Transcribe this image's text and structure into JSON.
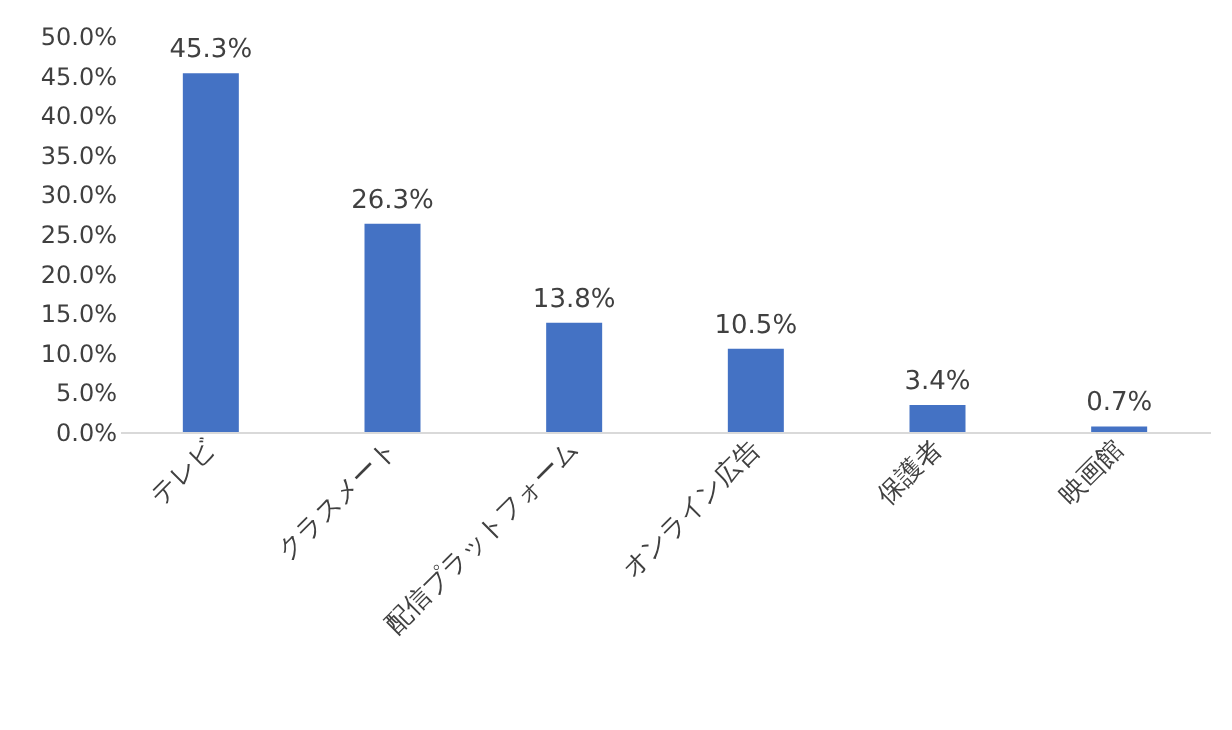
{
  "chart_data": {
    "type": "bar",
    "categories": [
      "テレビ",
      "クラスメート",
      "配信プラットフォーム",
      "オンライン広告",
      "保護者",
      "映画館"
    ],
    "values": [
      45.3,
      26.3,
      13.8,
      10.5,
      3.4,
      0.7
    ],
    "value_labels": [
      "45.3%",
      "26.3%",
      "13.8%",
      "10.5%",
      "3.4%",
      "0.7%"
    ],
    "color": "#4472c4",
    "ylim": [
      0,
      50
    ],
    "yticks": [
      {
        "value": 0,
        "label": "0.0%"
      },
      {
        "value": 5,
        "label": "5.0%"
      },
      {
        "value": 10,
        "label": "10.0%"
      },
      {
        "value": 15,
        "label": "15.0%"
      },
      {
        "value": 20,
        "label": "20.0%"
      },
      {
        "value": 25,
        "label": "25.0%"
      },
      {
        "value": 30,
        "label": "30.0%"
      },
      {
        "value": 35,
        "label": "35.0%"
      },
      {
        "value": 40,
        "label": "40.0%"
      },
      {
        "value": 45,
        "label": "45.0%"
      },
      {
        "value": 50,
        "label": "50.0%"
      }
    ],
    "grid": false
  }
}
